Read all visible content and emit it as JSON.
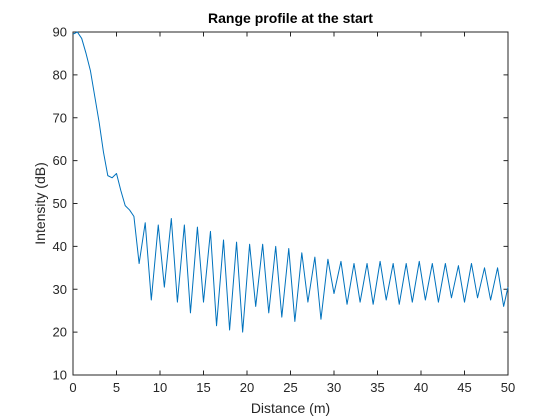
{
  "chart_data": {
    "type": "line",
    "title": "Range profile at the start",
    "xlabel": "Distance (m)",
    "ylabel": "Intensity (dB)",
    "xlim": [
      0,
      50
    ],
    "ylim": [
      10,
      90
    ],
    "xticks": [
      0,
      5,
      10,
      15,
      20,
      25,
      30,
      35,
      40,
      45,
      50
    ],
    "yticks": [
      10,
      20,
      30,
      40,
      50,
      60,
      70,
      80,
      90
    ],
    "grid": false,
    "box": true,
    "series": [
      {
        "color": "#0072BD",
        "x": [
          0,
          0.5,
          1.0,
          1.5,
          2.0,
          2.5,
          3.0,
          3.5,
          4.0,
          4.5,
          5.0,
          5.5,
          6.0,
          6.5,
          7.0,
          7.6,
          8.3,
          9.0,
          9.8,
          10.5,
          11.3,
          12.0,
          12.8,
          13.5,
          14.3,
          15.0,
          15.8,
          16.5,
          17.3,
          18.0,
          18.8,
          19.5,
          20.3,
          21.0,
          21.8,
          22.5,
          23.3,
          24.0,
          24.8,
          25.5,
          26.3,
          27.0,
          27.8,
          28.5,
          29.3,
          30.0,
          30.8,
          31.5,
          32.3,
          33.0,
          33.8,
          34.5,
          35.3,
          36.0,
          36.8,
          37.5,
          38.3,
          39.0,
          39.8,
          40.5,
          41.3,
          42.0,
          42.8,
          43.5,
          44.3,
          45.0,
          45.8,
          46.5,
          47.3,
          48.0,
          48.8,
          49.5,
          50.0
        ],
        "y": [
          89.5,
          90,
          88.5,
          85,
          81,
          75,
          69,
          62,
          56.5,
          56,
          57,
          53,
          49.5,
          48.5,
          47,
          36,
          45.5,
          27.5,
          45,
          30.5,
          46.5,
          27,
          45,
          24.5,
          44.5,
          27,
          43.5,
          21.5,
          41.5,
          20.5,
          41,
          20,
          40.5,
          26,
          40.5,
          24.5,
          40,
          23.5,
          39.5,
          22.5,
          38.5,
          27,
          37.5,
          23,
          37,
          29,
          36.5,
          26.5,
          36,
          27,
          36,
          26.5,
          36.5,
          27.5,
          36,
          26.5,
          36,
          27,
          36.5,
          27.5,
          36,
          27,
          36,
          28,
          35.5,
          27,
          36,
          28,
          35,
          27.5,
          35,
          26,
          30.5
        ]
      }
    ]
  }
}
